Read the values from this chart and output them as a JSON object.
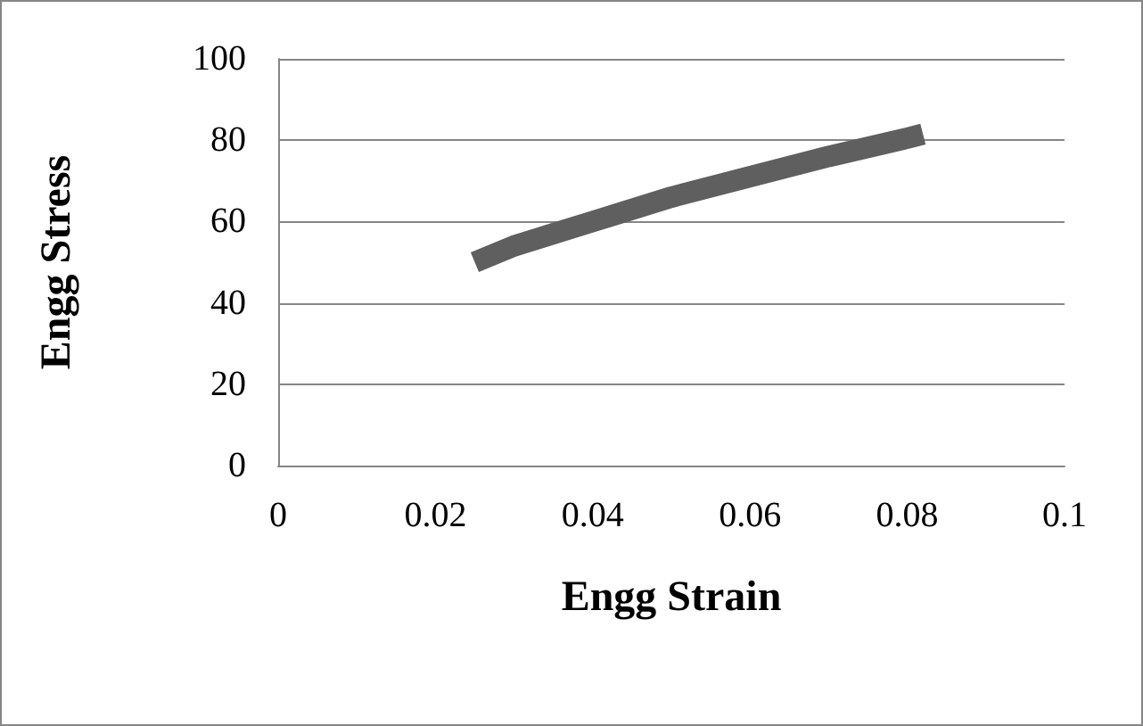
{
  "chart_data": {
    "type": "line",
    "xlabel": "Engg Strain",
    "ylabel": "Engg Stress",
    "series": [
      {
        "color": "#5f5f5f",
        "x": [
          0.025,
          0.03,
          0.035,
          0.04,
          0.05,
          0.06,
          0.07,
          0.08,
          0.082
        ],
        "values": [
          50,
          54,
          57,
          60,
          66,
          71,
          76,
          80.5,
          81.5
        ]
      }
    ],
    "xlim": [
      0,
      0.1
    ],
    "xticks": [
      0,
      0.02,
      0.04,
      0.06,
      0.08,
      0.1
    ],
    "ylim": [
      0,
      100
    ],
    "yticks": [
      0,
      20,
      40,
      60,
      80,
      100
    ],
    "grid": "y",
    "marker": "none",
    "line_style": "solid"
  }
}
